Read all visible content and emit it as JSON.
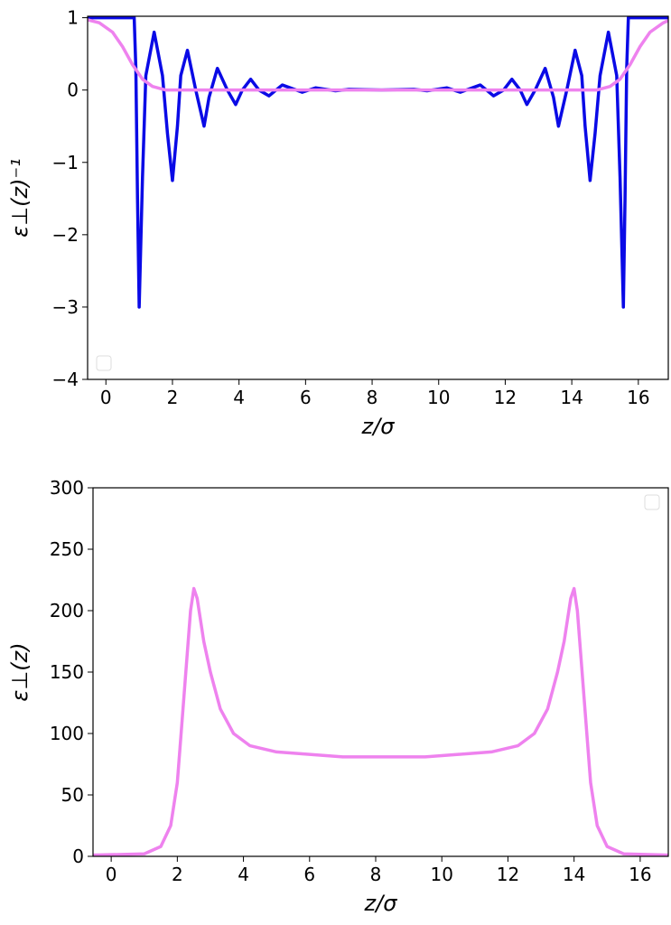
{
  "chart_data": [
    {
      "type": "line",
      "xlabel": "z/σ",
      "ylabel": "ε⊥(z)⁻¹",
      "xlim": [
        -0.55,
        16.9
      ],
      "ylim": [
        -4,
        1.02
      ],
      "xticks": [
        0,
        2,
        4,
        6,
        8,
        10,
        12,
        14,
        16
      ],
      "yticks": [
        {
          "value": -4,
          "label": "−4"
        },
        {
          "value": -3,
          "label": "−3"
        },
        {
          "value": -2,
          "label": "−2"
        },
        {
          "value": -1,
          "label": "−1"
        },
        0,
        1
      ],
      "legend": "lower left",
      "series": [
        {
          "color": "#0a0ae6",
          "x": [
            -0.55,
            0.85,
            0.9,
            0.95,
            1.0,
            1.1,
            1.2,
            1.45,
            1.7,
            1.85,
            2.0,
            2.15,
            2.25,
            2.45,
            2.7,
            2.95,
            3.1,
            3.35,
            3.65,
            3.9,
            4.1,
            4.35,
            4.6,
            4.9,
            5.3,
            5.9,
            6.3,
            6.9,
            7.3,
            8.28,
            9.25,
            9.65,
            10.25,
            10.65,
            11.25,
            11.65,
            11.95,
            12.2,
            12.45,
            12.65,
            12.9,
            13.2,
            13.45,
            13.6,
            13.85,
            14.1,
            14.3,
            14.4,
            14.55,
            14.7,
            14.85,
            15.1,
            15.35,
            15.45,
            15.55,
            15.6,
            15.65,
            15.7,
            16.9
          ],
          "values": [
            1,
            1,
            0.3,
            -1.5,
            -3,
            -1.2,
            0.2,
            0.8,
            0.2,
            -0.6,
            -1.25,
            -0.5,
            0.2,
            0.55,
            0,
            -0.5,
            -0.1,
            0.3,
            0,
            -0.2,
            0,
            0.15,
            0,
            -0.08,
            0.07,
            -0.03,
            0.03,
            -0.01,
            0.01,
            0,
            0.01,
            -0.01,
            0.03,
            -0.03,
            0.07,
            -0.08,
            0,
            0.15,
            0,
            -0.2,
            0,
            0.3,
            -0.1,
            -0.5,
            0,
            0.55,
            0.2,
            -0.5,
            -1.25,
            -0.6,
            0.2,
            0.8,
            0.2,
            -1.2,
            -3,
            -1.5,
            0.3,
            1,
            1
          ]
        },
        {
          "color": "#ee82ee",
          "x": [
            -0.55,
            -0.2,
            0.2,
            0.5,
            0.8,
            1.1,
            1.4,
            1.8,
            8.28,
            14.75,
            15.15,
            15.45,
            15.75,
            16.05,
            16.35,
            16.75,
            16.9
          ],
          "values": [
            0.97,
            0.93,
            0.8,
            0.6,
            0.35,
            0.15,
            0.05,
            0,
            0,
            0,
            0.05,
            0.15,
            0.35,
            0.6,
            0.8,
            0.93,
            0.96
          ]
        }
      ]
    },
    {
      "type": "line",
      "xlabel": "z/σ",
      "ylabel": "ε⊥(z)",
      "xlim": [
        -0.55,
        16.85
      ],
      "ylim": [
        0,
        300
      ],
      "xticks": [
        0,
        2,
        4,
        6,
        8,
        10,
        12,
        14,
        16
      ],
      "yticks": [
        0,
        50,
        100,
        150,
        200,
        250,
        300
      ],
      "legend": "upper right",
      "series": [
        {
          "color": "#ee82ee",
          "x": [
            -0.55,
            1,
            1.5,
            1.8,
            2.0,
            2.2,
            2.4,
            2.5,
            2.6,
            2.8,
            3.0,
            3.3,
            3.7,
            4.2,
            5,
            6,
            7,
            8.25,
            9.5,
            10.5,
            11.5,
            12.3,
            12.8,
            13.2,
            13.5,
            13.7,
            13.9,
            14.0,
            14.1,
            14.3,
            14.5,
            14.7,
            15.0,
            15.5,
            16.85
          ],
          "values": [
            1,
            2,
            8,
            25,
            60,
            130,
            200,
            218,
            210,
            175,
            150,
            120,
            100,
            90,
            85,
            83,
            81,
            81,
            81,
            83,
            85,
            90,
            100,
            120,
            150,
            175,
            210,
            218,
            200,
            130,
            60,
            25,
            8,
            2,
            1
          ]
        }
      ]
    }
  ]
}
